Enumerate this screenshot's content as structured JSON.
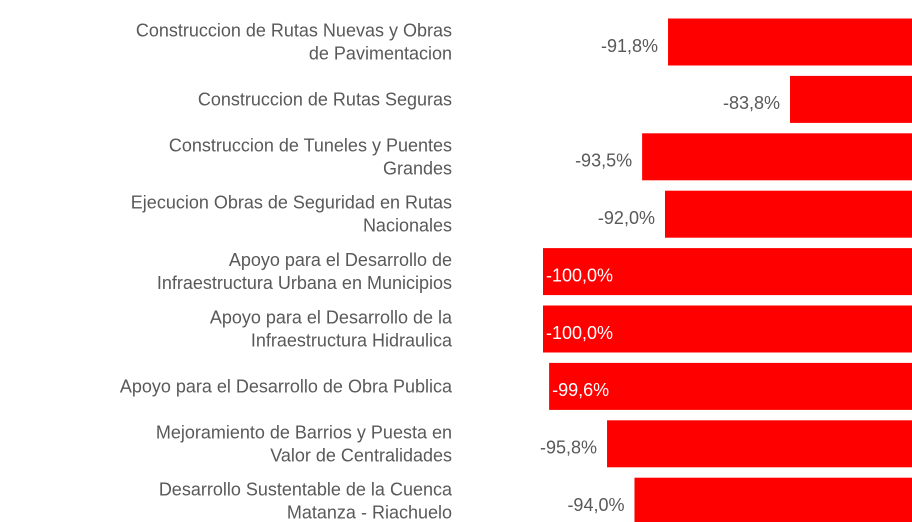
{
  "chart_data": {
    "type": "hbar",
    "categories": [
      "Construccion de Rutas Nuevas y Obras\nde Pavimentacion",
      "Construccion de Rutas Seguras",
      "Construccion de Tuneles y Puentes\nGrandes",
      "Ejecucion Obras de Seguridad en Rutas\nNacionales",
      "Apoyo para el Desarrollo de\nInfraestructura Urbana en Municipios",
      "Apoyo para el Desarrollo de la\nInfraestructura Hidraulica",
      "Apoyo para el Desarrollo de Obra Publica",
      "Mejoramiento de Barrios y Puesta en\nValor de Centralidades",
      "Desarrollo Sustentable de la Cuenca\nMatanza - Riachuelo"
    ],
    "values": [
      -91.8,
      -83.8,
      -93.5,
      -92.0,
      -100.0,
      -100.0,
      -99.6,
      -95.8,
      -94.0
    ],
    "value_labels": [
      "-91,8%",
      "-83,8%",
      "-93,5%",
      "-92,0%",
      "-100,0%",
      "-100,0%",
      "-99,6%",
      "-95,8%",
      "-94,0%"
    ],
    "color": "#ff0000",
    "xlim": [
      -100,
      -75.8
    ]
  }
}
